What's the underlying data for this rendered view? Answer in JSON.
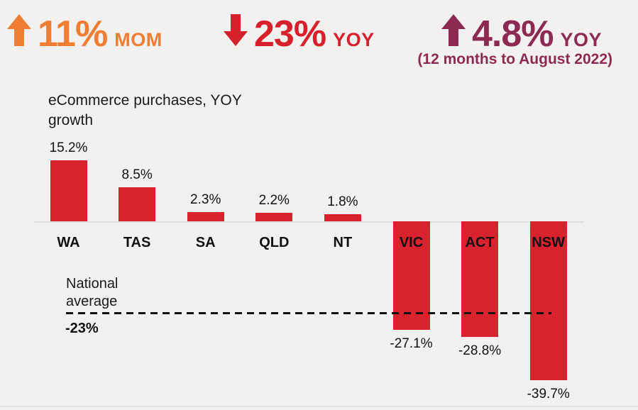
{
  "stats": [
    {
      "direction": "up",
      "value": "11%",
      "period": "MOM",
      "color": "#ef7d33",
      "note": ""
    },
    {
      "direction": "down",
      "value": "23%",
      "period": "YOY",
      "color": "#d8202d",
      "note": ""
    },
    {
      "direction": "up",
      "value": "4.8%",
      "period": "YOY",
      "color": "#8c2a52",
      "note": "(12 months to August 2022)"
    }
  ],
  "chart_data": {
    "type": "bar",
    "title_lines": [
      "eCommerce purchases, YOY",
      "growth"
    ],
    "categories": [
      "WA",
      "TAS",
      "SA",
      "QLD",
      "NT",
      "VIC",
      "ACT",
      "NSW"
    ],
    "values": [
      15.2,
      8.5,
      2.3,
      2.2,
      1.8,
      -27.1,
      -28.8,
      -39.7
    ],
    "labels": [
      "15.2%",
      "8.5%",
      "2.3%",
      "2.2%",
      "1.8%",
      "-27.1%",
      "-28.8%",
      "-39.7%"
    ],
    "bar_color": "#d8232e",
    "ylim": [
      -40,
      16
    ],
    "grid": false,
    "legend": false,
    "reference_line": {
      "label_lines": [
        "National",
        "average"
      ],
      "value": -23,
      "value_label": "-23%"
    }
  }
}
